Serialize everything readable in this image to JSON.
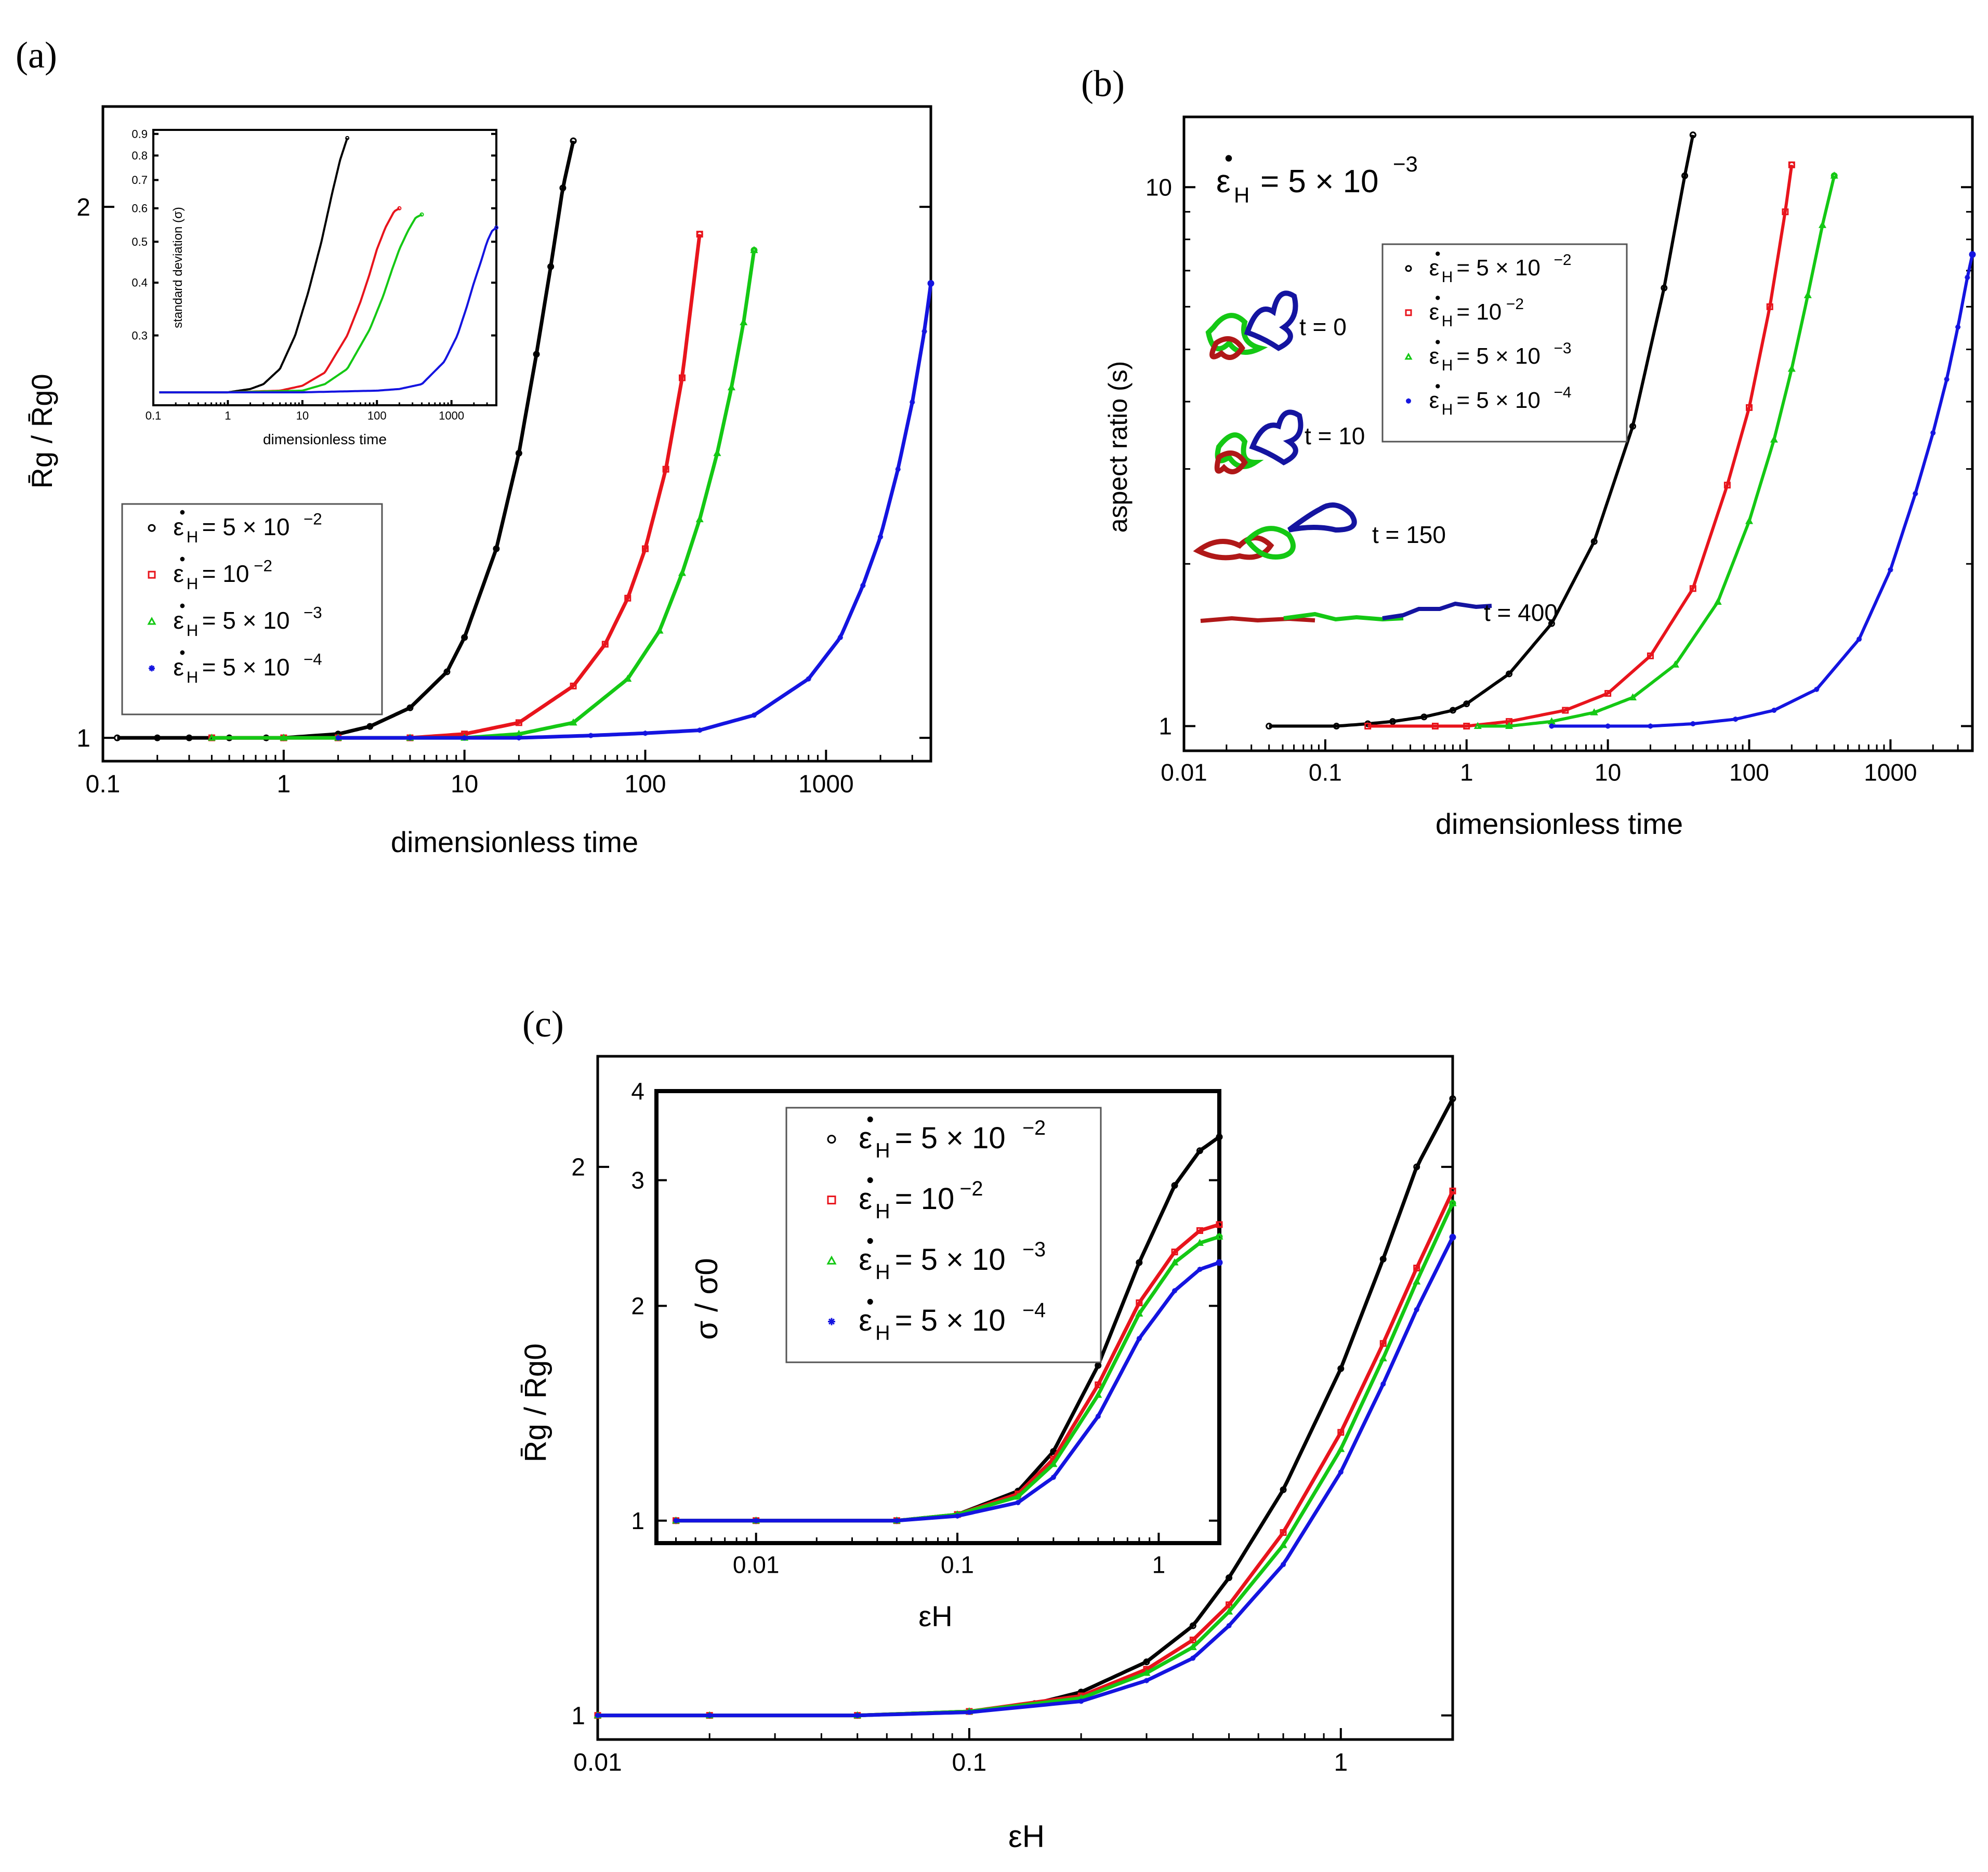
{
  "colors": {
    "black": "#000000",
    "red": "#e8141c",
    "green": "#14c814",
    "blue": "#1414e0"
  },
  "panels": {
    "a": "(a)",
    "b": "(b)",
    "c": "(c)"
  },
  "legend": {
    "eps": "ε",
    "dot": "•",
    "sub": "H",
    "black": {
      "pre": "= 5 × 10",
      "exp": "−2"
    },
    "red": {
      "pre": "= 10",
      "exp": "−2"
    },
    "green": {
      "pre": "= 5 × 10",
      "exp": "−3"
    },
    "blue": {
      "pre": "= 5 × 10",
      "exp": "−4"
    }
  },
  "chart_data": [
    {
      "id": "a",
      "type": "scatter",
      "xlabel": "dimensionless time",
      "ylabel": "R̄g / R̄g0",
      "xscale": "log",
      "yscale": "log",
      "xlim": [
        0.1,
        3800
      ],
      "ylim": [
        0.97,
        2.28
      ],
      "xticks": [
        "0.1",
        "1",
        "10",
        "100",
        "1000"
      ],
      "yticks": [
        "1",
        "2"
      ],
      "series": [
        {
          "name": "ε̇H = 5 × 10−2",
          "color": "black",
          "x": [
            0.12,
            0.2,
            0.3,
            0.5,
            0.8,
            1,
            2,
            3,
            5,
            8,
            10,
            15,
            20,
            25,
            30,
            35,
            40
          ],
          "y": [
            1.0,
            1.0,
            1.0,
            1.0,
            1.0,
            1.0,
            1.005,
            1.015,
            1.04,
            1.09,
            1.14,
            1.28,
            1.45,
            1.65,
            1.85,
            2.05,
            2.18
          ]
        },
        {
          "name": "ε̇H = 10−2",
          "color": "red",
          "x": [
            0.4,
            1,
            2,
            5,
            10,
            20,
            40,
            60,
            80,
            100,
            130,
            160,
            200
          ],
          "y": [
            1.0,
            1.0,
            1.0,
            1.0,
            1.005,
            1.02,
            1.07,
            1.13,
            1.2,
            1.28,
            1.42,
            1.6,
            1.93
          ]
        },
        {
          "name": "ε̇H = 5 × 10−3",
          "color": "green",
          "x": [
            0.4,
            1,
            2,
            5,
            10,
            20,
            40,
            80,
            120,
            160,
            200,
            250,
            300,
            350,
            400
          ],
          "y": [
            1.0,
            1.0,
            1.0,
            1.0,
            1.0,
            1.005,
            1.02,
            1.08,
            1.15,
            1.24,
            1.33,
            1.45,
            1.58,
            1.72,
            1.89
          ]
        },
        {
          "name": "ε̇H = 5 × 10−4",
          "color": "blue",
          "x": [
            2,
            5,
            10,
            20,
            50,
            100,
            200,
            400,
            800,
            1200,
            1600,
            2000,
            2500,
            3000,
            3500,
            3800
          ],
          "y": [
            1.0,
            1.0,
            1.0,
            1.0,
            1.003,
            1.006,
            1.01,
            1.03,
            1.08,
            1.14,
            1.22,
            1.3,
            1.42,
            1.55,
            1.7,
            1.81
          ]
        }
      ],
      "legend_position": "left-center",
      "inset": {
        "xlabel": "dimensionless time",
        "ylabel": "standard deviation (σ)",
        "xscale": "log",
        "yscale": "log",
        "xlim": [
          0.1,
          4000
        ],
        "ylim": [
          0.205,
          0.92
        ],
        "xticks": [
          "0.1",
          "1",
          "10",
          "100",
          "1000"
        ],
        "yticks": [
          "0.3",
          "0.4",
          "0.5",
          "0.6",
          "0.7",
          "0.8",
          "0.9"
        ],
        "series": [
          {
            "color": "black",
            "x": [
              0.12,
              0.5,
              1,
              2,
              3,
              5,
              8,
              12,
              18,
              25,
              32,
              40
            ],
            "y": [
              0.22,
              0.22,
              0.22,
              0.224,
              0.23,
              0.25,
              0.3,
              0.38,
              0.5,
              0.65,
              0.78,
              0.88
            ]
          },
          {
            "color": "red",
            "x": [
              0.12,
              1,
              5,
              10,
              20,
              40,
              60,
              80,
              100,
              130,
              170,
              200
            ],
            "y": [
              0.22,
              0.22,
              0.222,
              0.228,
              0.245,
              0.3,
              0.36,
              0.42,
              0.48,
              0.54,
              0.59,
              0.6
            ]
          },
          {
            "color": "green",
            "x": [
              0.12,
              1,
              10,
              20,
              40,
              80,
              120,
              160,
              200,
              260,
              330,
              400
            ],
            "y": [
              0.22,
              0.22,
              0.222,
              0.23,
              0.25,
              0.31,
              0.37,
              0.43,
              0.48,
              0.53,
              0.57,
              0.58
            ]
          },
          {
            "color": "blue",
            "x": [
              0.12,
              10,
              100,
              200,
              400,
              800,
              1200,
              1600,
              2000,
              2500,
              3000,
              3500,
              4000
            ],
            "y": [
              0.22,
              0.22,
              0.222,
              0.224,
              0.23,
              0.26,
              0.3,
              0.35,
              0.4,
              0.45,
              0.5,
              0.53,
              0.54
            ]
          }
        ]
      }
    },
    {
      "id": "b",
      "type": "scatter",
      "xlabel": "dimensionless time",
      "ylabel": "aspect ratio (s)",
      "xscale": "log",
      "yscale": "log",
      "xlim": [
        0.01,
        3800
      ],
      "ylim": [
        0.9,
        13.5
      ],
      "xticks": [
        "0.01",
        "0.1",
        "1",
        "10",
        "100",
        "1000"
      ],
      "yticks": [
        "1",
        "10"
      ],
      "title": {
        "eps": "ε",
        "sub": "H",
        "pre": "= 5 × 10",
        "exp": "−3"
      },
      "series": [
        {
          "name": "ε̇H = 5 × 10−2",
          "color": "black",
          "x": [
            0.04,
            0.12,
            0.2,
            0.3,
            0.5,
            0.8,
            1,
            2,
            4,
            8,
            15,
            25,
            35,
            40
          ],
          "y": [
            1.0,
            1.0,
            1.01,
            1.02,
            1.04,
            1.07,
            1.1,
            1.25,
            1.55,
            2.2,
            3.6,
            6.5,
            10.5,
            12.5
          ]
        },
        {
          "name": "ε̇H = 10−2",
          "color": "red",
          "x": [
            0.2,
            0.6,
            1,
            2,
            5,
            10,
            20,
            40,
            70,
            100,
            140,
            180,
            200
          ],
          "y": [
            1.0,
            1.0,
            1.0,
            1.02,
            1.07,
            1.15,
            1.35,
            1.8,
            2.8,
            3.9,
            6.0,
            9.0,
            11.0
          ]
        },
        {
          "name": "ε̇H = 5 × 10−3",
          "color": "green",
          "x": [
            1.2,
            2,
            4,
            8,
            15,
            30,
            60,
            100,
            150,
            200,
            260,
            330,
            400
          ],
          "y": [
            1.0,
            1.0,
            1.02,
            1.06,
            1.13,
            1.3,
            1.7,
            2.4,
            3.4,
            4.6,
            6.3,
            8.5,
            10.5
          ]
        },
        {
          "name": "ε̇H = 5 × 10−4",
          "color": "blue",
          "x": [
            4,
            10,
            20,
            40,
            80,
            150,
            300,
            600,
            1000,
            1500,
            2000,
            2500,
            3000,
            3500,
            3800
          ],
          "y": [
            1.0,
            1.0,
            1.0,
            1.01,
            1.03,
            1.07,
            1.17,
            1.45,
            1.95,
            2.7,
            3.5,
            4.4,
            5.5,
            6.8,
            7.5
          ]
        }
      ],
      "legend_position": "top-right",
      "snapshot_labels": [
        "t = 0",
        "t = 10",
        "t = 150",
        "t = 400"
      ]
    },
    {
      "id": "c",
      "type": "scatter",
      "xlabel": "εH",
      "ylabel": "R̄g / R̄g0",
      "xscale": "log",
      "yscale": "log",
      "xlim": [
        0.01,
        2.0
      ],
      "ylim": [
        0.97,
        2.3
      ],
      "xticks": [
        "0.01",
        "0.1",
        "1"
      ],
      "yticks": [
        "1",
        "2"
      ],
      "series": [
        {
          "name": "ε̇H = 5 × 10−2",
          "color": "black",
          "x": [
            0.01,
            0.02,
            0.05,
            0.1,
            0.15,
            0.2,
            0.3,
            0.4,
            0.5,
            0.7,
            1,
            1.3,
            1.6,
            2.0
          ],
          "y": [
            1.0,
            1.0,
            1.0,
            1.005,
            1.015,
            1.03,
            1.07,
            1.12,
            1.19,
            1.33,
            1.55,
            1.78,
            2.0,
            2.18
          ]
        },
        {
          "name": "ε̇H = 10−2",
          "color": "red",
          "x": [
            0.01,
            0.02,
            0.05,
            0.1,
            0.2,
            0.3,
            0.4,
            0.5,
            0.7,
            1,
            1.3,
            1.6,
            2.0
          ],
          "y": [
            1.0,
            1.0,
            1.0,
            1.005,
            1.025,
            1.06,
            1.1,
            1.15,
            1.26,
            1.43,
            1.6,
            1.76,
            1.94
          ]
        },
        {
          "name": "ε̇H = 5 × 10−3",
          "color": "green",
          "x": [
            0.01,
            0.02,
            0.05,
            0.1,
            0.2,
            0.3,
            0.4,
            0.5,
            0.7,
            1,
            1.3,
            1.6,
            2.0
          ],
          "y": [
            1.0,
            1.0,
            1.0,
            1.005,
            1.022,
            1.055,
            1.09,
            1.14,
            1.24,
            1.4,
            1.57,
            1.73,
            1.91
          ]
        },
        {
          "name": "ε̇H = 5 × 10−4",
          "color": "blue",
          "x": [
            0.01,
            0.02,
            0.05,
            0.1,
            0.2,
            0.3,
            0.4,
            0.5,
            0.7,
            1,
            1.3,
            1.6,
            2.0
          ],
          "y": [
            1.0,
            1.0,
            1.0,
            1.004,
            1.018,
            1.045,
            1.075,
            1.12,
            1.21,
            1.36,
            1.52,
            1.67,
            1.83
          ]
        }
      ],
      "inset": {
        "xlabel": "εH",
        "ylabel": "σ / σ0",
        "xscale": "log",
        "yscale": "log",
        "xlim": [
          0.0032,
          2.0
        ],
        "ylim": [
          0.93,
          4.0
        ],
        "xticks": [
          "0.01",
          "0.1",
          "1"
        ],
        "yticks": [
          "1",
          "2",
          "3",
          "4"
        ],
        "legend_position": "top-center",
        "series": [
          {
            "color": "black",
            "x": [
              0.004,
              0.01,
              0.05,
              0.1,
              0.2,
              0.3,
              0.5,
              0.8,
              1.2,
              1.6,
              2.0
            ],
            "y": [
              1.0,
              1.0,
              1.0,
              1.02,
              1.1,
              1.25,
              1.65,
              2.3,
              2.95,
              3.3,
              3.45
            ]
          },
          {
            "color": "red",
            "x": [
              0.004,
              0.01,
              0.05,
              0.1,
              0.2,
              0.3,
              0.5,
              0.8,
              1.2,
              1.6,
              2.0
            ],
            "y": [
              1.0,
              1.0,
              1.0,
              1.02,
              1.09,
              1.22,
              1.55,
              2.02,
              2.38,
              2.55,
              2.6
            ]
          },
          {
            "color": "green",
            "x": [
              0.004,
              0.01,
              0.05,
              0.1,
              0.2,
              0.3,
              0.5,
              0.8,
              1.2,
              1.6,
              2.0
            ],
            "y": [
              1.0,
              1.0,
              1.0,
              1.02,
              1.08,
              1.2,
              1.5,
              1.95,
              2.3,
              2.45,
              2.5
            ]
          },
          {
            "color": "blue",
            "x": [
              0.004,
              0.01,
              0.05,
              0.1,
              0.2,
              0.3,
              0.5,
              0.8,
              1.2,
              1.6,
              2.0
            ],
            "y": [
              1.0,
              1.0,
              1.0,
              1.015,
              1.06,
              1.15,
              1.4,
              1.8,
              2.1,
              2.25,
              2.3
            ]
          }
        ]
      }
    }
  ]
}
